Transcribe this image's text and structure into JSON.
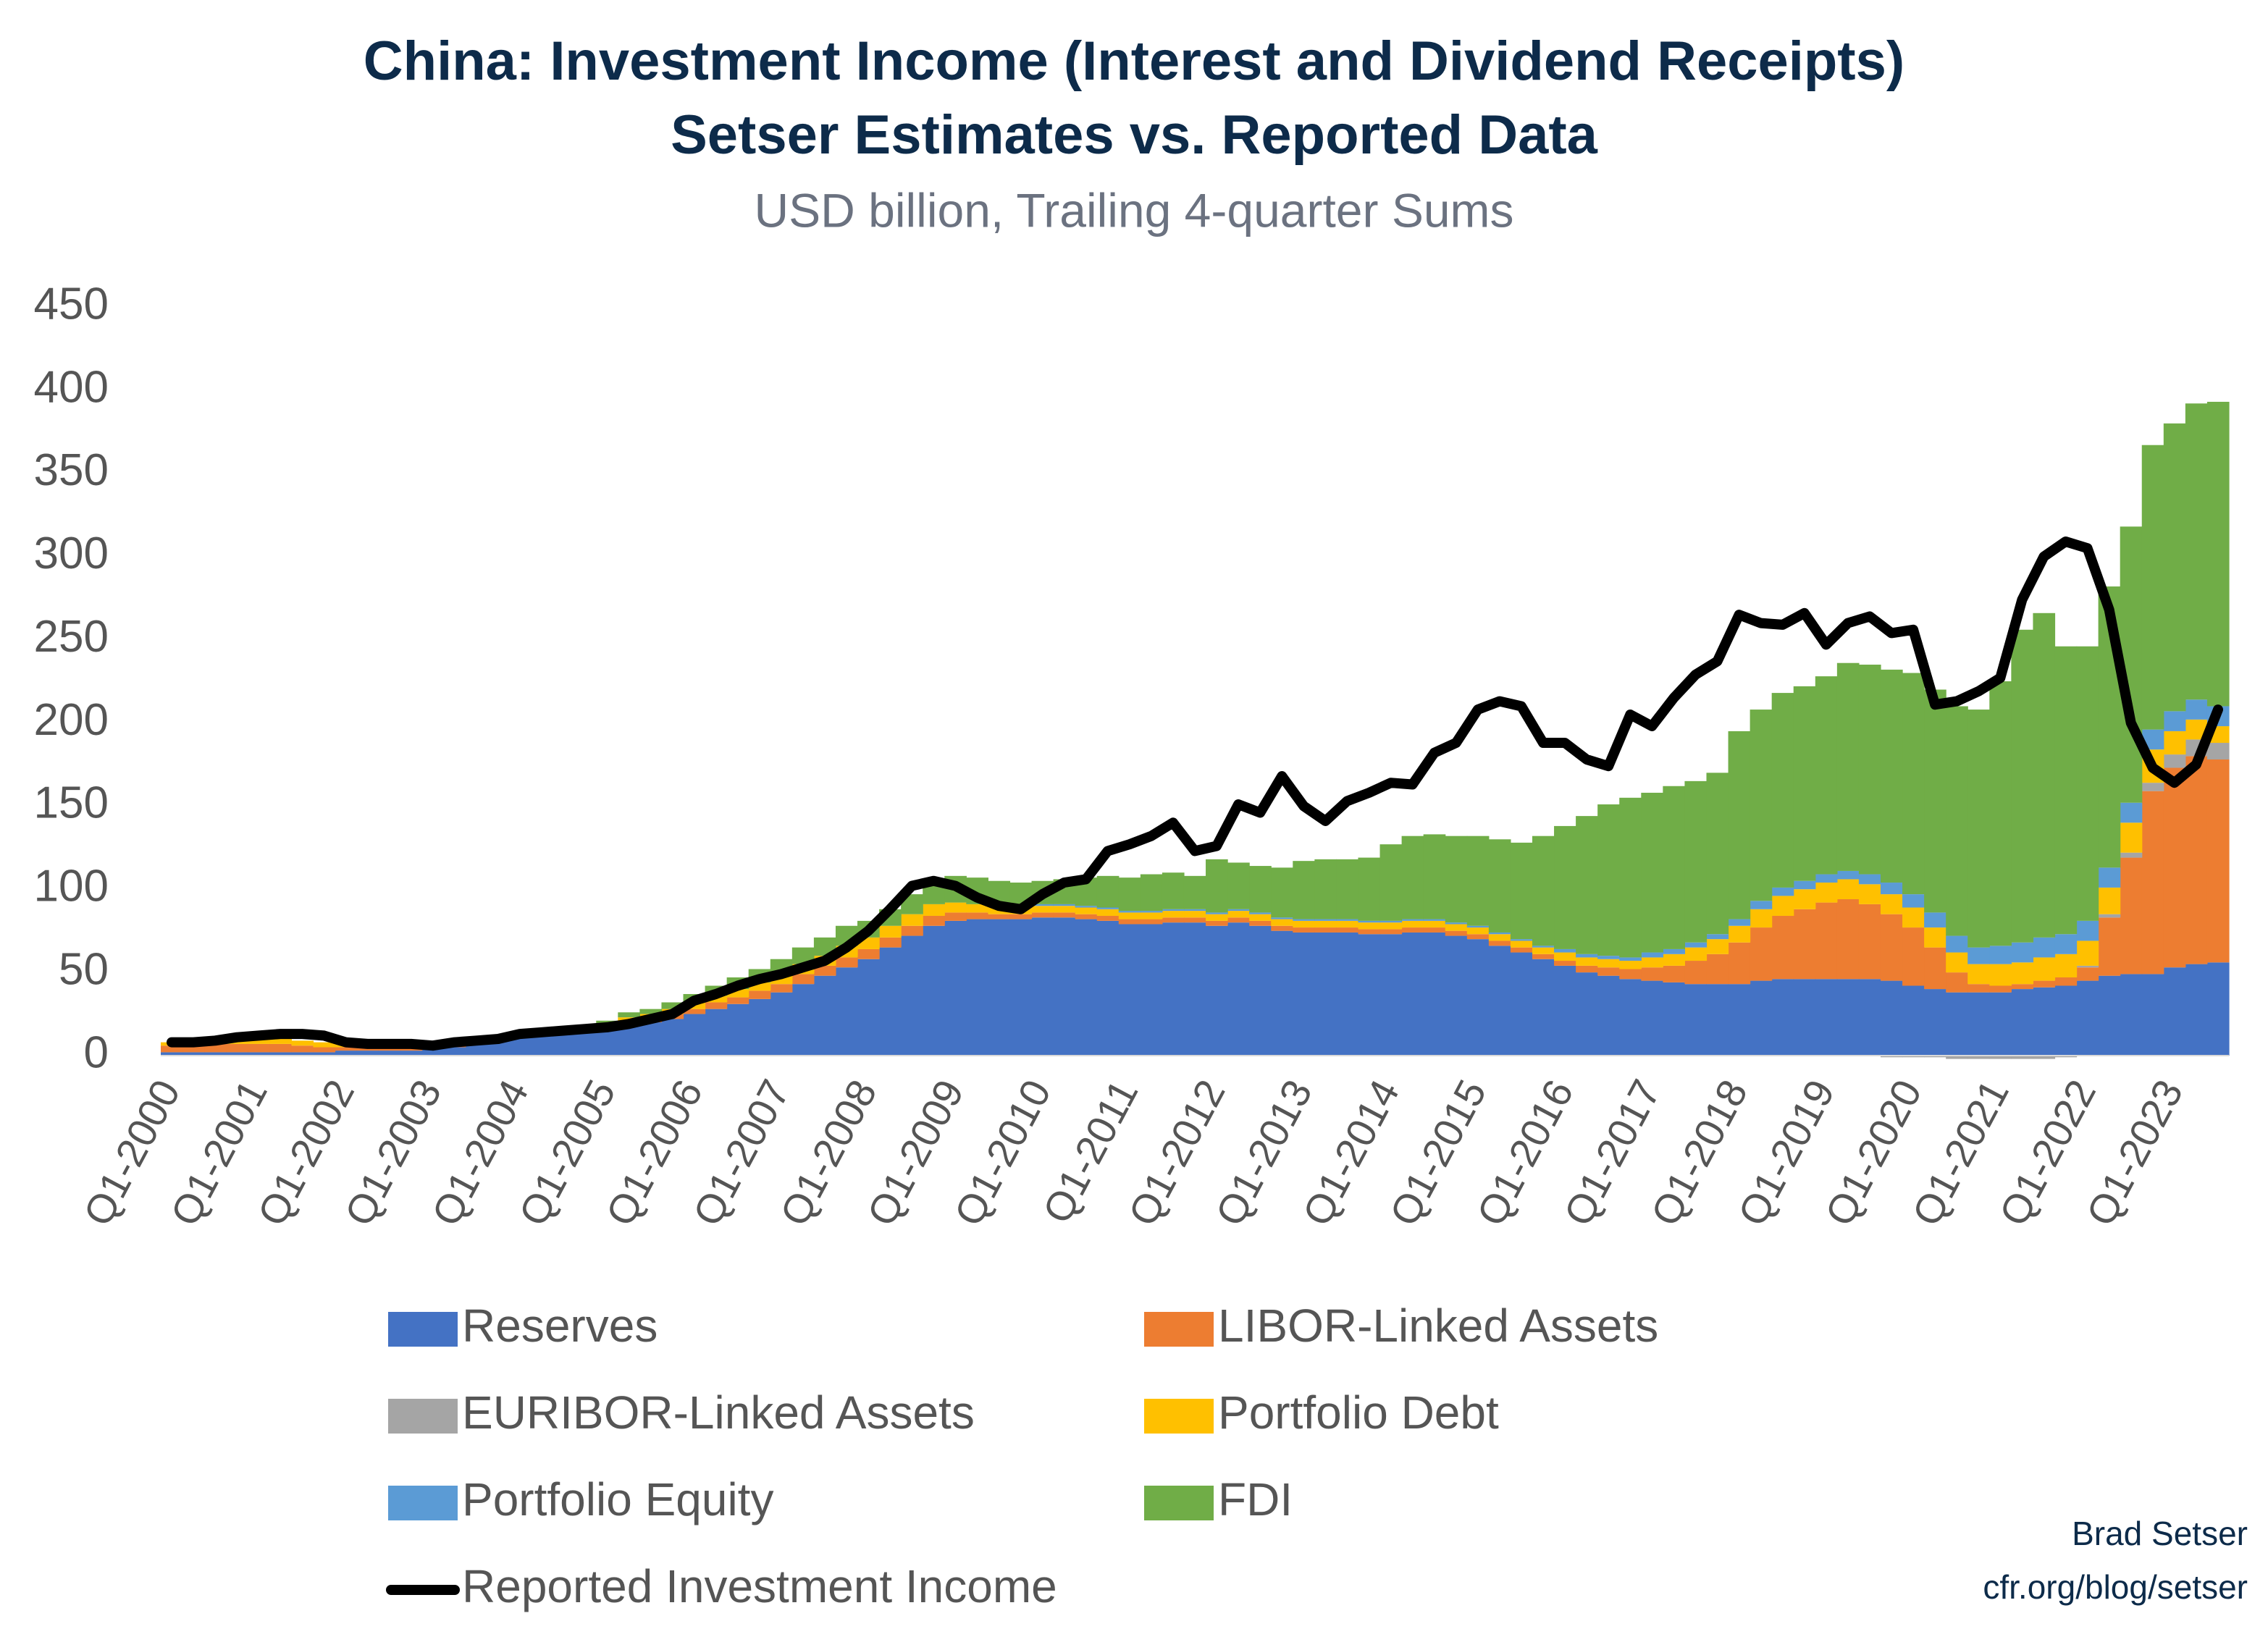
{
  "chart_data": {
    "type": "bar",
    "stacked": true,
    "title": "China: Investment Income (Interest and Dividend Receipts)",
    "subtitle_line2": "Setser Estimates vs. Reported Data",
    "subtitle": "USD billion, Trailing 4-quarter Sums",
    "source": [
      "Brad Setser",
      "cfr.org/blog/setser"
    ],
    "ylim": [
      0,
      450
    ],
    "yticks": [
      0,
      50,
      100,
      150,
      200,
      250,
      300,
      350,
      400,
      450
    ],
    "categories": [
      "Q1-2000",
      null,
      null,
      null,
      "Q1-2001",
      null,
      null,
      null,
      "Q1-2002",
      null,
      null,
      null,
      "Q1-2003",
      null,
      null,
      null,
      "Q1-2004",
      null,
      null,
      null,
      "Q1-2005",
      null,
      null,
      null,
      "Q1-2006",
      null,
      null,
      null,
      "Q1-2007",
      null,
      null,
      null,
      "Q1-2008",
      null,
      null,
      null,
      "Q1-2009",
      null,
      null,
      null,
      "Q1-2010",
      null,
      null,
      null,
      "Q1-2011",
      null,
      null,
      null,
      "Q1-2012",
      null,
      null,
      null,
      "Q1-2013",
      null,
      null,
      null,
      "Q1-2014",
      null,
      null,
      null,
      "Q1-2015",
      null,
      null,
      null,
      "Q1-2016",
      null,
      null,
      null,
      "Q1-2017",
      null,
      null,
      null,
      "Q1-2018",
      null,
      null,
      null,
      "Q1-2019",
      null,
      null,
      null,
      "Q1-2020",
      null,
      null,
      null,
      "Q1-2021",
      null,
      null,
      null,
      "Q1-2022",
      null,
      null,
      null,
      "Q1-2023",
      null,
      null
    ],
    "series": [
      {
        "name": "Reserves",
        "color": "#4472c4",
        "values": [
          2,
          2,
          2,
          2,
          2,
          2,
          2,
          2,
          3,
          3,
          3,
          3,
          4,
          5,
          7,
          9,
          11,
          12,
          13,
          14,
          16,
          18,
          20,
          22,
          25,
          28,
          31,
          34,
          38,
          43,
          48,
          53,
          58,
          65,
          72,
          78,
          81,
          82,
          82,
          82,
          83,
          83,
          82,
          81,
          79,
          79,
          80,
          80,
          78,
          80,
          78,
          75,
          74,
          74,
          74,
          73,
          73,
          74,
          74,
          72,
          70,
          66,
          62,
          58,
          54,
          50,
          48,
          46,
          45,
          44,
          43,
          43,
          43,
          45,
          46,
          46,
          46,
          46,
          46,
          45,
          42,
          40,
          38,
          38,
          38,
          40,
          41,
          42,
          45,
          48,
          49,
          49,
          53,
          55,
          56
        ]
      },
      {
        "name": "LIBOR-Linked Assets",
        "color": "#ed7d31",
        "values": [
          4,
          4,
          5,
          5,
          5,
          5,
          4,
          3,
          2,
          2,
          2,
          2,
          1,
          1,
          1,
          1,
          1,
          1,
          1,
          1,
          1,
          2,
          2,
          3,
          3,
          4,
          4,
          5,
          5,
          6,
          6,
          6,
          6,
          6,
          6,
          6,
          5,
          4,
          3,
          3,
          3,
          3,
          3,
          3,
          3,
          3,
          3,
          3,
          3,
          3,
          3,
          3,
          3,
          3,
          3,
          3,
          3,
          3,
          3,
          3,
          3,
          3,
          3,
          3,
          3,
          4,
          5,
          6,
          8,
          10,
          14,
          18,
          25,
          32,
          38,
          42,
          46,
          48,
          45,
          40,
          35,
          25,
          12,
          5,
          4,
          3,
          4,
          5,
          8,
          35,
          70,
          110,
          120,
          125,
          122
        ]
      },
      {
        "name": "EURIBOR-Linked Assets",
        "color": "#a5a5a5",
        "values": [
          0,
          0,
          0,
          0,
          0,
          0,
          0,
          0,
          0,
          0,
          0,
          0,
          0,
          0,
          0,
          0,
          0,
          0,
          0,
          0,
          0,
          0,
          0,
          0,
          0,
          0,
          0,
          0,
          0,
          0,
          0,
          0,
          0,
          0,
          0,
          0,
          0,
          0,
          0,
          0,
          0,
          0,
          0,
          0,
          0,
          0,
          0,
          0,
          0,
          0,
          0,
          0,
          0,
          0,
          0,
          0,
          0,
          0,
          0,
          0,
          0,
          0,
          0,
          0,
          0,
          0,
          0,
          0,
          0,
          0,
          0,
          0,
          0,
          0,
          0,
          0,
          0,
          0,
          0,
          -1,
          -1,
          -1,
          -2,
          -2,
          -2,
          -2,
          -2,
          -1,
          1,
          2,
          3,
          5,
          8,
          10,
          10
        ]
      },
      {
        "name": "Portfolio Debt",
        "color": "#ffc000",
        "values": [
          2,
          2,
          2,
          2,
          3,
          3,
          3,
          3,
          2,
          2,
          2,
          2,
          2,
          2,
          2,
          2,
          2,
          2,
          2,
          2,
          2,
          3,
          3,
          3,
          4,
          4,
          5,
          5,
          5,
          6,
          6,
          7,
          7,
          7,
          7,
          7,
          6,
          5,
          5,
          4,
          4,
          4,
          4,
          4,
          4,
          4,
          4,
          4,
          4,
          4,
          4,
          4,
          4,
          4,
          4,
          4,
          4,
          4,
          4,
          4,
          4,
          4,
          4,
          4,
          5,
          5,
          5,
          5,
          6,
          7,
          8,
          9,
          10,
          11,
          12,
          12,
          12,
          12,
          12,
          12,
          12,
          12,
          12,
          12,
          13,
          13,
          14,
          14,
          15,
          16,
          18,
          20,
          14,
          12,
          10
        ]
      },
      {
        "name": "Portfolio Equity",
        "color": "#5b9bd5",
        "values": [
          0,
          0,
          0,
          0,
          0,
          0,
          0,
          0,
          0,
          0,
          0,
          0,
          0,
          0,
          0,
          0,
          0,
          0,
          0,
          0,
          0,
          0,
          0,
          0,
          0,
          0,
          0,
          0,
          0,
          0,
          0,
          0,
          0,
          0,
          0,
          0,
          0,
          0,
          0,
          0,
          1,
          1,
          1,
          1,
          1,
          1,
          1,
          1,
          1,
          1,
          1,
          1,
          1,
          1,
          1,
          1,
          1,
          1,
          1,
          1,
          1,
          1,
          1,
          1,
          2,
          2,
          2,
          2,
          3,
          3,
          3,
          3,
          4,
          5,
          5,
          5,
          5,
          5,
          6,
          7,
          8,
          9,
          10,
          10,
          11,
          12,
          12,
          12,
          12,
          12,
          12,
          12,
          12,
          12,
          12
        ]
      },
      {
        "name": "FDI",
        "color": "#70ad47",
        "values": [
          0,
          0,
          0,
          0,
          0,
          0,
          0,
          0,
          0,
          0,
          0,
          0,
          0,
          0,
          0,
          0,
          0,
          0,
          0,
          0,
          2,
          3,
          3,
          4,
          5,
          6,
          7,
          8,
          10,
          10,
          11,
          12,
          10,
          10,
          12,
          12,
          16,
          16,
          15,
          15,
          14,
          15,
          17,
          19,
          20,
          22,
          22,
          20,
          32,
          28,
          28,
          30,
          35,
          36,
          36,
          38,
          46,
          50,
          51,
          52,
          54,
          56,
          58,
          66,
          74,
          83,
          91,
          96,
          96,
          98,
          97,
          97,
          113,
          115,
          117,
          117,
          119,
          125,
          126,
          128,
          133,
          134,
          138,
          143,
          159,
          188,
          195,
          173,
          165,
          169,
          166,
          171,
          173,
          178,
          183
        ]
      },
      {
        "name": "Reported Investment Income",
        "color": "#000000",
        "type": "line",
        "values": [
          8,
          8,
          9,
          11,
          12,
          13,
          13,
          12,
          8,
          7,
          7,
          7,
          6,
          8,
          9,
          10,
          13,
          14,
          15,
          16,
          17,
          19,
          22,
          25,
          33,
          37,
          42,
          46,
          49,
          53,
          57,
          65,
          75,
          88,
          102,
          105,
          102,
          95,
          90,
          88,
          97,
          104,
          106,
          123,
          127,
          132,
          140,
          123,
          126,
          151,
          146,
          168,
          150,
          141,
          153,
          158,
          164,
          163,
          182,
          188,
          208,
          213,
          210,
          188,
          188,
          178,
          174,
          205,
          198,
          215,
          229,
          237,
          265,
          260,
          259,
          266,
          247,
          260,
          264,
          254,
          256,
          211,
          213,
          219,
          227,
          274,
          300,
          309,
          305,
          268,
          200,
          173,
          164,
          175,
          208
        ]
      }
    ]
  }
}
